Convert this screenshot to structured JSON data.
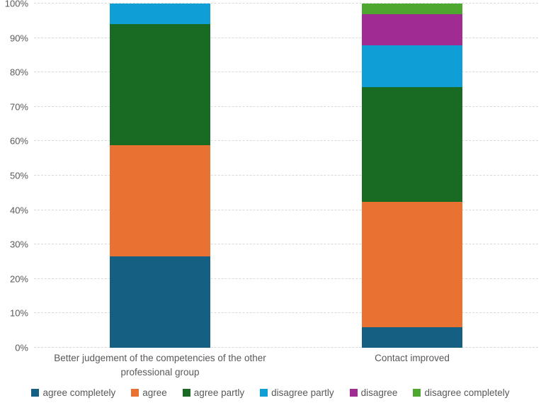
{
  "chart_data": {
    "type": "bar",
    "variant": "100-percent-stacked-column",
    "title": "",
    "xlabel": "",
    "ylabel": "",
    "categories": [
      "Better judgement of the competencies of the other professional group",
      "Contact improved"
    ],
    "series": [
      {
        "name": "agree completely",
        "color": "#156082",
        "values": [
          26.47,
          6.06
        ]
      },
      {
        "name": "agree",
        "color": "#E97132",
        "values": [
          32.35,
          36.36
        ]
      },
      {
        "name": "agree partly",
        "color": "#196B24",
        "values": [
          35.29,
          33.33
        ]
      },
      {
        "name": "disagree partly",
        "color": "#0F9ED5",
        "values": [
          5.88,
          12.12
        ]
      },
      {
        "name": "disagree",
        "color": "#A02B93",
        "values": [
          0,
          9.09
        ]
      },
      {
        "name": "disagree completely",
        "color": "#4EA72E",
        "values": [
          0,
          3.03
        ]
      }
    ],
    "ylim": [
      0,
      100
    ],
    "y_ticks": [
      0,
      10,
      20,
      30,
      40,
      50,
      60,
      70,
      80,
      90,
      100
    ],
    "y_tick_labels": [
      "0%",
      "10%",
      "20%",
      "30%",
      "40%",
      "50%",
      "60%",
      "70%",
      "80%",
      "90%",
      "100%"
    ],
    "grid": true,
    "gridline_style": "dashed",
    "legend_position": "bottom"
  },
  "style": {
    "text_color": "#595959",
    "gridline_color": "#D9D9D9",
    "background": "#FFFFFF"
  }
}
